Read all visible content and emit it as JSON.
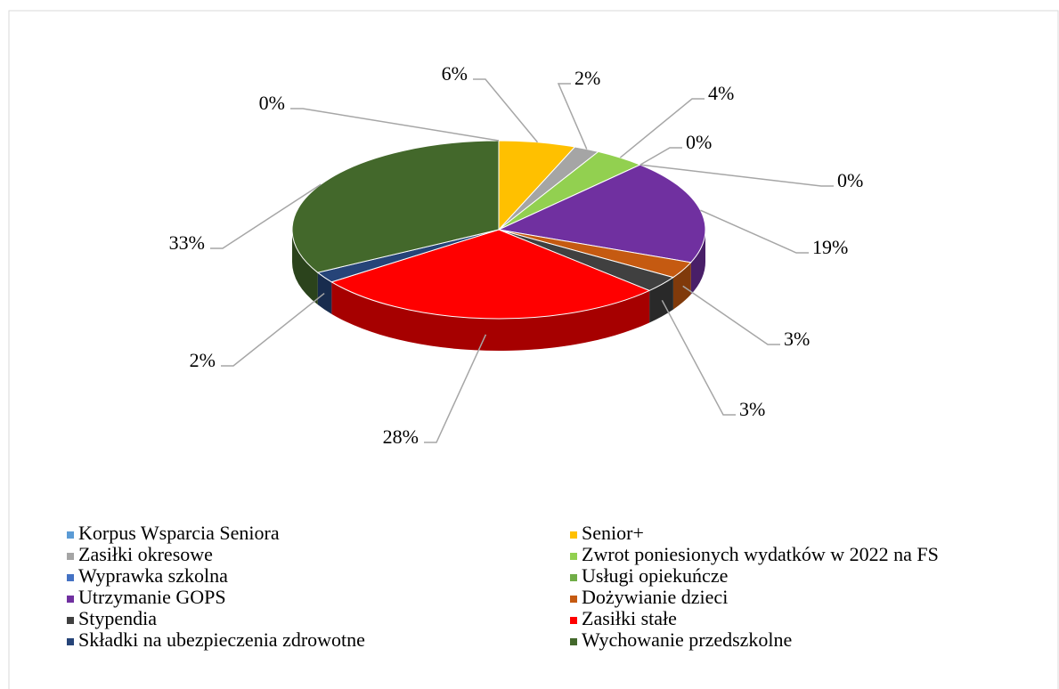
{
  "chart_data": {
    "type": "pie3d",
    "categories": [
      "Korpus Wsparcia Seniora",
      "Senior+",
      "Zasiłki okresowe",
      "Zwrot poniesionych wydatków w 2022 na FS",
      "Wyprawka szkolna",
      "Usługi opiekuńcze",
      "Utrzymanie GOPS",
      "Dożywianie dzieci",
      "Stypendia",
      "Zasiłki stałe",
      "Składki na ubezpieczenia zdrowotne",
      "Wychowanie przedszkolne"
    ],
    "values": [
      0,
      6,
      2,
      4,
      0,
      0,
      19,
      3,
      3,
      28,
      2,
      33
    ],
    "value_labels": [
      "0%",
      "6%",
      "2%",
      "4%",
      "0%",
      "0%",
      "19%",
      "3%",
      "3%",
      "28%",
      "2%",
      "33%"
    ],
    "colors": [
      "#5b9bd5",
      "#ffc000",
      "#a5a5a5",
      "#92d050",
      "#4472c4",
      "#70ad47",
      "#7030a0",
      "#c55a11",
      "#404040",
      "#ff0000",
      "#264478",
      "#43682b"
    ],
    "legend": "bottom"
  }
}
